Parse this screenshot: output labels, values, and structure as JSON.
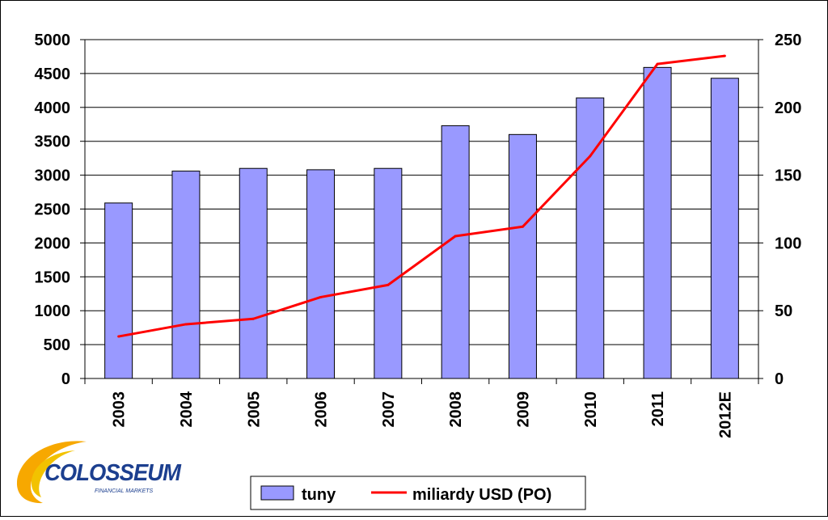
{
  "chart_data": {
    "type": "bar",
    "categories": [
      "2003",
      "2004",
      "2005",
      "2006",
      "2007",
      "2008",
      "2009",
      "2010",
      "2011",
      "2012E"
    ],
    "series": [
      {
        "name": "tuny",
        "type": "bar",
        "axis": "left",
        "color": "#9999ff",
        "values": [
          2590,
          3060,
          3100,
          3080,
          3100,
          3730,
          3600,
          4140,
          4590,
          4430
        ]
      },
      {
        "name": "miliardy USD (PO)",
        "type": "line",
        "axis": "right",
        "color": "#ff0000",
        "values": [
          31,
          40,
          44,
          60,
          69,
          105,
          112,
          164,
          232,
          238
        ]
      }
    ],
    "y_left": {
      "ticks": [
        "0",
        "500",
        "1000",
        "1500",
        "2000",
        "2500",
        "3000",
        "3500",
        "4000",
        "4500",
        "5000"
      ],
      "ylim": [
        0,
        5000
      ]
    },
    "y_right": {
      "ticks": [
        "0",
        "50",
        "100",
        "150",
        "200",
        "250"
      ],
      "ylim": [
        0,
        250
      ]
    },
    "grid": "horizontal",
    "legend": "bottom"
  },
  "logo": {
    "name": "COLOSSEUM",
    "tagline": "FINANCIAL MARKETS",
    "colors": {
      "swoosh": "#f7a800",
      "text": "#1c3f8f"
    }
  }
}
